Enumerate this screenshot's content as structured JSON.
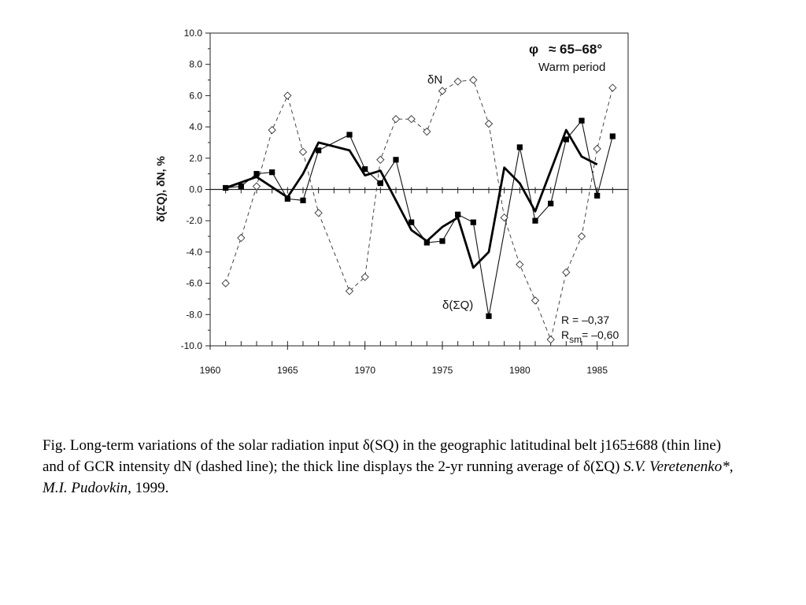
{
  "chart_data": {
    "type": "line",
    "xlim": [
      1960,
      1987
    ],
    "ylim": [
      -10,
      10
    ],
    "x_ticks": [
      "1960",
      "1965",
      "1970",
      "1975",
      "1980",
      "1985"
    ],
    "y_ticks": [
      "10.0",
      "8.0",
      "6.0",
      "4.0",
      "2.0",
      "0.0",
      "-2.0",
      "-4.0",
      "-6.0",
      "-8.0",
      "-10.0"
    ],
    "ylabel": "δ(ΣQ), δN, %",
    "grid": false,
    "series": [
      {
        "name": "δ(ΣQ)",
        "style": "thin-line-square",
        "x": [
          1961,
          1962,
          1963,
          1964,
          1965,
          1966,
          1967,
          1969,
          1970,
          1971,
          1972,
          1973,
          1974,
          1975,
          1976,
          1977,
          1978,
          1980,
          1981,
          1982,
          1983,
          1984,
          1985,
          1986
        ],
        "y": [
          0.1,
          0.2,
          1.0,
          1.1,
          -0.6,
          -0.7,
          2.5,
          3.5,
          1.3,
          0.4,
          1.9,
          -2.1,
          -3.4,
          -3.3,
          -1.6,
          -2.1,
          -8.1,
          2.7,
          -2.0,
          -0.9,
          3.2,
          4.4,
          -0.4,
          3.4
        ]
      },
      {
        "name": "δN",
        "style": "dashed-diamond",
        "x": [
          1961,
          1962,
          1963,
          1964,
          1965,
          1966,
          1967,
          1969,
          1970,
          1971,
          1972,
          1973,
          1974,
          1975,
          1976,
          1977,
          1978,
          1979,
          1980,
          1981,
          1982,
          1983,
          1984,
          1985,
          1986
        ],
        "y": [
          -6.0,
          -3.1,
          0.2,
          3.8,
          6.0,
          2.4,
          -1.5,
          -6.5,
          -5.6,
          1.9,
          4.5,
          4.5,
          3.7,
          6.3,
          6.9,
          7.0,
          4.2,
          -1.8,
          -4.8,
          -7.1,
          -9.6,
          -5.3,
          -3.0,
          2.6,
          6.5
        ]
      },
      {
        "name": "",
        "style": "thick-line",
        "x": [
          1961,
          1963,
          1965,
          1966,
          1967,
          1969,
          1970,
          1971,
          1973,
          1974,
          1975,
          1976,
          1977,
          1978,
          1979,
          1980,
          1981,
          1983,
          1984,
          1985
        ],
        "y": [
          0.1,
          0.8,
          -0.5,
          1.0,
          3.0,
          2.5,
          0.9,
          1.2,
          -2.6,
          -3.3,
          -2.4,
          -1.8,
          -5.0,
          -4.0,
          1.4,
          0.4,
          -1.4,
          3.8,
          2.1,
          1.6
        ]
      }
    ],
    "annotations": {
      "region_phi": "φ",
      "region_range": "≈ 65–68°",
      "period": "Warm period",
      "dn_label": "δN",
      "dsq_label": "δ(ΣQ)",
      "r_text": "R = –0,37",
      "rsm_r": "R",
      "rsm_sub": "sm",
      "rsm_val": "= –0,60"
    }
  },
  "caption": {
    "text": "Fig.  Long-term variations of the solar radiation input δ(SQ) in the geographic latitudinal belt j165±688 (thin line) and of GCR intensity dN (dashed line); the thick line displays the 2-yr running average of δ(ΣQ) ",
    "authors": "S.V. Veretenenko*, M.I. Pudovkin,",
    "year": " 1999."
  }
}
